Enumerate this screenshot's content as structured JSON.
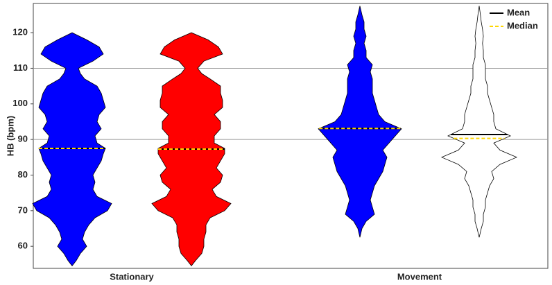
{
  "chart_data": {
    "type": "violin",
    "ylabel": "HB (bpm)",
    "categories": [
      "Stationary",
      "Movement"
    ],
    "ylim": [
      53.8,
      128.2
    ],
    "yticks": [
      60,
      70,
      80,
      90,
      100,
      110,
      120
    ],
    "grid_lines": [
      90,
      110
    ],
    "legend": {
      "position": "upper right",
      "entries": [
        {
          "label": "Mean",
          "color": "#000000",
          "style": "solid"
        },
        {
          "label": "Median",
          "color": "#ffd700",
          "style": "dashed"
        }
      ]
    },
    "violins": [
      {
        "category": 0,
        "color": "#0000ff",
        "mean": 87.5,
        "median": 87.5,
        "y": [
          54.5,
          56,
          58,
          60,
          62,
          64,
          66,
          68,
          70,
          72,
          74,
          76,
          78,
          80,
          82,
          84,
          86,
          87.5,
          89,
          91,
          93,
          95,
          97,
          99,
          101,
          103,
          105,
          107,
          108.5,
          110,
          112,
          114,
          116,
          118,
          120
        ],
        "density": [
          0,
          0.1,
          0.2,
          0.35,
          0.25,
          0.3,
          0.4,
          0.55,
          0.85,
          0.95,
          0.6,
          0.5,
          0.55,
          0.5,
          0.6,
          0.7,
          0.75,
          0.8,
          0.6,
          0.55,
          0.7,
          0.6,
          0.65,
          0.8,
          0.75,
          0.7,
          0.6,
          0.3,
          0.2,
          0.15,
          0.5,
          0.75,
          0.65,
          0.35,
          0
        ]
      },
      {
        "category": 0,
        "color": "#ff0000",
        "mean": 87.3,
        "median": 87.3,
        "y": [
          54.5,
          56,
          58,
          60,
          62,
          64,
          66,
          68,
          70,
          72,
          74,
          76,
          78,
          80,
          82,
          84,
          86,
          87.5,
          89,
          91,
          93,
          95,
          97,
          99,
          101,
          103,
          105,
          107,
          108.5,
          110,
          112,
          114,
          116,
          118,
          120
        ],
        "density": [
          0,
          0.1,
          0.25,
          0.3,
          0.3,
          0.35,
          0.35,
          0.45,
          0.8,
          0.95,
          0.6,
          0.5,
          0.7,
          0.75,
          0.6,
          0.7,
          0.8,
          0.8,
          0.55,
          0.55,
          0.7,
          0.7,
          0.55,
          0.75,
          0.75,
          0.7,
          0.7,
          0.45,
          0.25,
          0.15,
          0.3,
          0.75,
          0.65,
          0.4,
          0
        ]
      },
      {
        "category": 1,
        "color": "#0000ff",
        "mean": 93.1,
        "median": 93.1,
        "y": [
          62.5,
          65,
          67,
          69,
          71,
          73,
          75,
          77,
          79,
          81,
          83,
          85,
          87,
          89,
          91,
          93,
          95,
          97,
          99,
          101,
          103,
          105,
          107,
          109,
          111,
          113,
          115,
          117,
          119,
          121,
          123,
          125,
          127.5
        ],
        "density": [
          0,
          0.05,
          0.15,
          0.35,
          0.3,
          0.25,
          0.3,
          0.35,
          0.45,
          0.55,
          0.6,
          0.65,
          0.55,
          0.7,
          0.85,
          1.0,
          0.6,
          0.45,
          0.4,
          0.35,
          0.3,
          0.3,
          0.3,
          0.25,
          0.3,
          0.15,
          0.15,
          0.1,
          0.15,
          0.1,
          0.1,
          0.05,
          0
        ]
      },
      {
        "category": 1,
        "color": "#ffffff",
        "mean": 91.4,
        "median": 90.3,
        "y": [
          62.5,
          65,
          67,
          69,
          71,
          73,
          75,
          77,
          79,
          81,
          83,
          85,
          87,
          89,
          91,
          93,
          95,
          97,
          99,
          101,
          103,
          105,
          107,
          109,
          111,
          113,
          115,
          117,
          119,
          121,
          123,
          125,
          127.5
        ],
        "density": [
          0,
          0.05,
          0.1,
          0.1,
          0.15,
          0.15,
          0.2,
          0.25,
          0.35,
          0.3,
          0.5,
          0.9,
          0.5,
          0.35,
          0.75,
          0.4,
          0.35,
          0.35,
          0.3,
          0.25,
          0.2,
          0.2,
          0.15,
          0.15,
          0.15,
          0.1,
          0.1,
          0.08,
          0.1,
          0.08,
          0.05,
          0.03,
          0
        ]
      }
    ]
  }
}
